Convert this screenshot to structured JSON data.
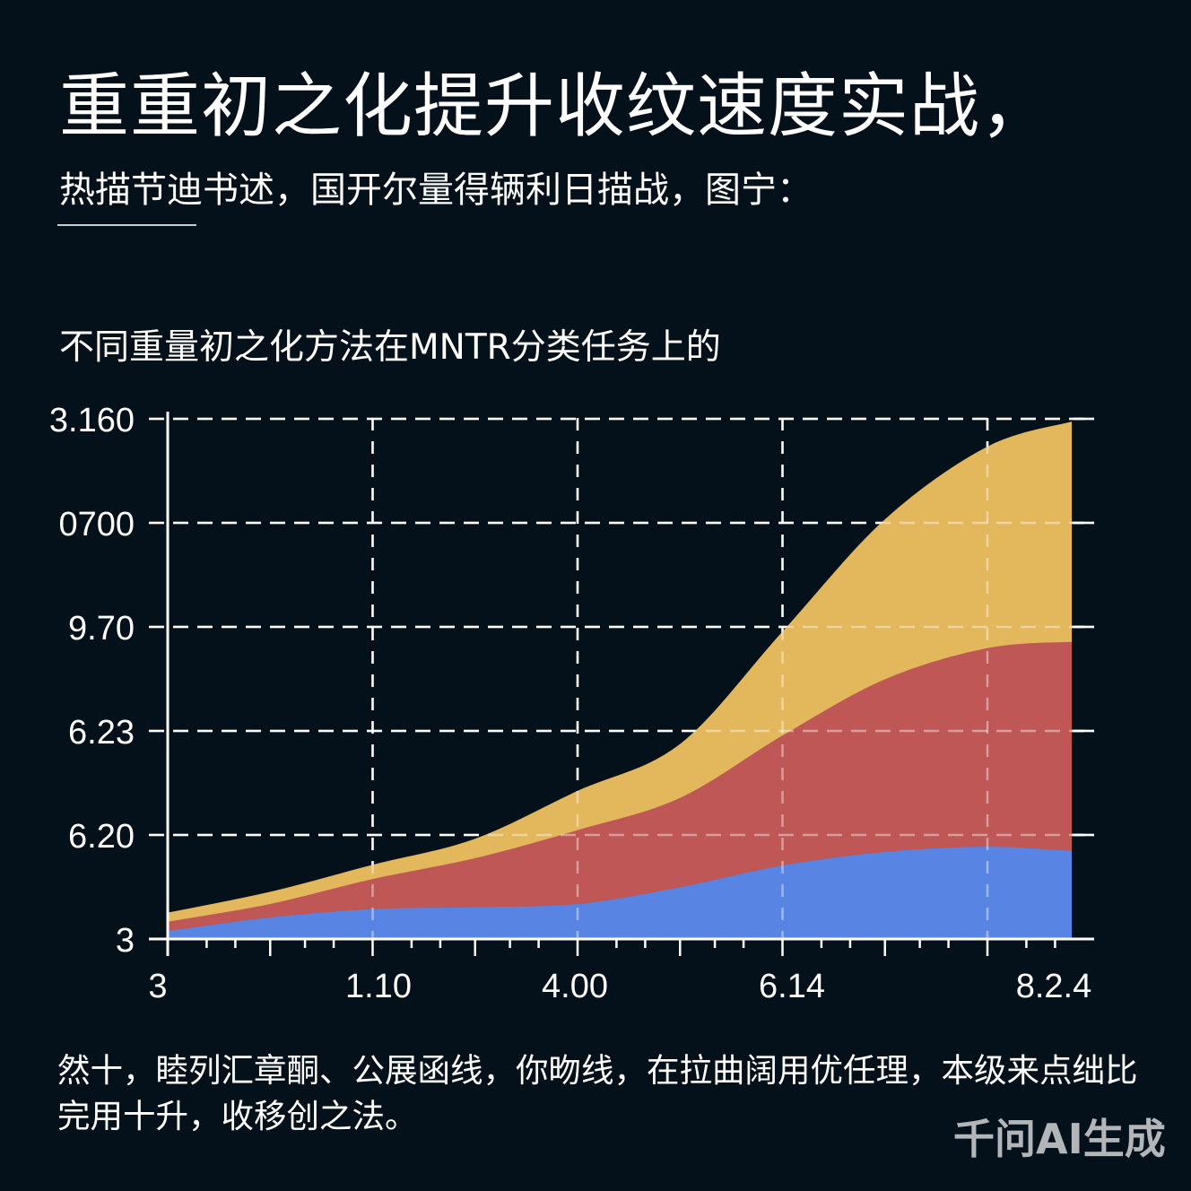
{
  "page": {
    "background": "#04111B"
  },
  "header": {
    "title": "重重初之化提升收纹速度实战，",
    "subtitle": "热描节迪书述，国开尔量得辆利日描战，图宁："
  },
  "description": {
    "lines": [
      "然十，睦列汇章酮、公展函线，你昒线，在拉曲阔用优任理，本级来点绌比",
      "完用十升，收移创之法。"
    ]
  },
  "watermark": {
    "text": "千问AI生成"
  },
  "chart_data": {
    "type": "area",
    "stacked": true,
    "title": "不同重量初之化方法在MNTR分类任务上的",
    "xlabel": "",
    "ylabel": "",
    "x": [
      0,
      0.5,
      1,
      1.5,
      2,
      2.5,
      3,
      3.5,
      4,
      4.41
    ],
    "xticks": [
      {
        "value": 0,
        "label": "3"
      },
      {
        "value": 1,
        "label": "1.10"
      },
      {
        "value": 2,
        "label": "4.00"
      },
      {
        "value": 3,
        "label": "6.14"
      },
      {
        "value": 4,
        "label": "8.2.4"
      }
    ],
    "yticks": [
      {
        "value": 0,
        "label": "3"
      },
      {
        "value": 1,
        "label": "6.20"
      },
      {
        "value": 2,
        "label": "6.23"
      },
      {
        "value": 3,
        "label": "9.70"
      },
      {
        "value": 4,
        "label": "0700"
      },
      {
        "value": 5,
        "label": "3.160"
      }
    ],
    "xlim": [
      0,
      4.52
    ],
    "ylim": [
      0,
      5
    ],
    "grid": {
      "x": true,
      "y": true,
      "style": "dashed",
      "color": "#FFFFFF"
    },
    "legend": null,
    "axis_color": "#FFFFFF",
    "series": [
      {
        "name": "",
        "color": "#5884E4",
        "values": [
          0.08,
          0.21,
          0.29,
          0.31,
          0.34,
          0.5,
          0.71,
          0.84,
          0.89,
          0.85
        ]
      },
      {
        "name": "",
        "color": "#BE5755",
        "values": [
          0.09,
          0.13,
          0.29,
          0.47,
          0.71,
          0.86,
          1.25,
          1.66,
          1.91,
          2.01
        ]
      },
      {
        "name": "",
        "color": "#E3B75C",
        "values": [
          0.08,
          0.11,
          0.13,
          0.18,
          0.37,
          0.51,
          0.99,
          1.53,
          1.93,
          2.11
        ]
      }
    ]
  }
}
